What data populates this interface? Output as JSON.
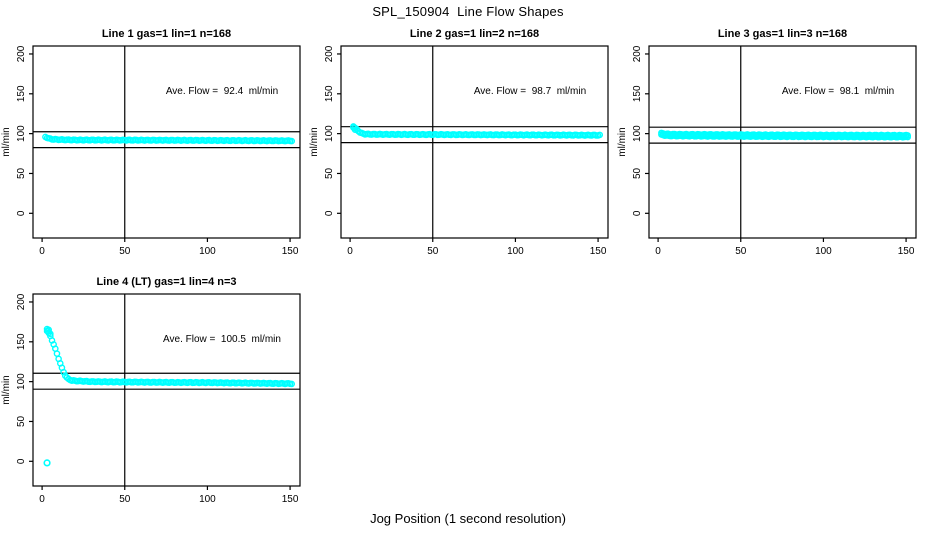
{
  "figure": {
    "title": "SPL_150904  Line Flow Shapes",
    "xlabel": "Jog Position (1 second resolution)",
    "background": "#ffffff",
    "axis_color": "#000000",
    "marker_color": "#00FFFF"
  },
  "chart_data": [
    {
      "type": "scatter",
      "title": "Line 1 gas=1 lin=1 n=168",
      "annotation": "Ave. Flow =  92.4  ml/min",
      "ave_flow_ml_min": 92.4,
      "ylabel": "ml/min",
      "xticks": [
        0,
        50,
        100,
        150
      ],
      "yticks": [
        0,
        50,
        100,
        150,
        200
      ],
      "xlim": [
        -5.5,
        156
      ],
      "ylim": [
        -31,
        210
      ],
      "vline_x": 50,
      "hlines_y": [
        102.4,
        82.4
      ],
      "grid": false,
      "legend": false,
      "x_step": 1,
      "x_end": 151,
      "series": [
        {
          "name": "flow",
          "anchors": [
            [
              2,
              96
            ],
            [
              3,
              95
            ],
            [
              4,
              94
            ],
            [
              6,
              93
            ],
            [
              10,
              92.5
            ],
            [
              20,
              92
            ],
            [
              60,
              91.8
            ],
            [
              100,
              91.5
            ],
            [
              151,
              91
            ]
          ]
        }
      ],
      "extra_points": [],
      "outliers": []
    },
    {
      "type": "scatter",
      "title": "Line 2 gas=1 lin=2 n=168",
      "annotation": "Ave. Flow =  98.7  ml/min",
      "ave_flow_ml_min": 98.7,
      "ylabel": "ml/min",
      "xticks": [
        0,
        50,
        100,
        150
      ],
      "yticks": [
        0,
        50,
        100,
        150,
        200
      ],
      "xlim": [
        -5.5,
        156
      ],
      "ylim": [
        -31,
        210
      ],
      "vline_x": 50,
      "hlines_y": [
        108.7,
        88.7
      ],
      "grid": false,
      "legend": false,
      "x_step": 1,
      "x_end": 151,
      "series": [
        {
          "name": "flow",
          "anchors": [
            [
              2,
              108
            ],
            [
              3,
              107
            ],
            [
              4,
              105.5
            ],
            [
              5,
              103.5
            ],
            [
              6,
              101.5
            ],
            [
              7,
              100.5
            ],
            [
              9,
              99.5
            ],
            [
              12,
              99.2
            ],
            [
              30,
              99
            ],
            [
              60,
              98.8
            ],
            [
              151,
              98
            ]
          ]
        }
      ],
      "extra_points": [
        [
          2,
          109
        ],
        [
          3,
          105
        ]
      ],
      "outliers": []
    },
    {
      "type": "scatter",
      "title": "Line 3 gas=1 lin=3 n=168",
      "annotation": "Ave. Flow =  98.1  ml/min",
      "ave_flow_ml_min": 98.1,
      "ylabel": "ml/min",
      "xticks": [
        0,
        50,
        100,
        150
      ],
      "yticks": [
        0,
        50,
        100,
        150,
        200
      ],
      "xlim": [
        -5.5,
        156
      ],
      "ylim": [
        -31,
        210
      ],
      "vline_x": 50,
      "hlines_y": [
        108.1,
        88.1
      ],
      "grid": false,
      "legend": false,
      "x_step": 1,
      "x_end": 151,
      "series": [
        {
          "name": "flow",
          "anchors": [
            [
              2,
              100.5
            ],
            [
              4,
              99.8
            ],
            [
              8,
              99.2
            ],
            [
              30,
              98.8
            ],
            [
              80,
              98.2
            ],
            [
              151,
              97.8
            ]
          ]
        },
        {
          "name": "flow-band-lower",
          "anchors": [
            [
              2,
              98.5
            ],
            [
              6,
              97.3
            ],
            [
              30,
              96.8
            ],
            [
              80,
              96.3
            ],
            [
              151,
              95.8
            ]
          ]
        }
      ],
      "extra_points": [],
      "outliers": []
    },
    {
      "type": "scatter",
      "title": "Line 4 (LT) gas=1 lin=4 n=3",
      "annotation": "Ave. Flow =  100.5  ml/min",
      "ave_flow_ml_min": 100.5,
      "ylabel": "ml/min",
      "xticks": [
        0,
        50,
        100,
        150
      ],
      "yticks": [
        0,
        50,
        100,
        150,
        200
      ],
      "xlim": [
        -5.5,
        156
      ],
      "ylim": [
        -31,
        210
      ],
      "vline_x": 50,
      "hlines_y": [
        110.5,
        90.5
      ],
      "grid": false,
      "legend": false,
      "x_step": 1,
      "x_end": 151,
      "series": [
        {
          "name": "flow",
          "anchors": [
            [
              3,
              164
            ],
            [
              4,
              161
            ],
            [
              5,
              157
            ],
            [
              6,
              152
            ],
            [
              7,
              147
            ],
            [
              8,
              141
            ],
            [
              9,
              135
            ],
            [
              10,
              129
            ],
            [
              11,
              123
            ],
            [
              12,
              117
            ],
            [
              13,
              112
            ],
            [
              14,
              108
            ],
            [
              15,
              105
            ],
            [
              16,
              103
            ],
            [
              18,
              101.5
            ],
            [
              20,
              101
            ],
            [
              25,
              100.5
            ],
            [
              30,
              100
            ],
            [
              50,
              99.5
            ],
            [
              80,
              99
            ],
            [
              100,
              98.8
            ],
            [
              120,
              98.3
            ],
            [
              151,
              97.5
            ]
          ]
        }
      ],
      "extra_points": [
        [
          3,
          166
        ],
        [
          3.5,
          163
        ],
        [
          4,
          165
        ],
        [
          5,
          160
        ]
      ],
      "outliers": [
        [
          3,
          -2
        ]
      ]
    }
  ]
}
